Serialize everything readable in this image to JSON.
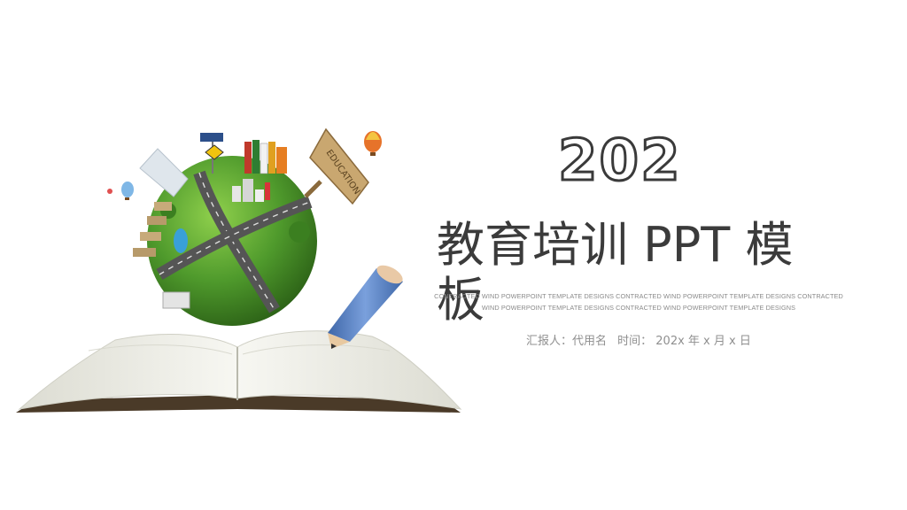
{
  "slide": {
    "year": "202",
    "title": "教育培训 PPT 模板",
    "tagline": "CONTRACTED WIND POWERPOINT TEMPLATE DESIGNS CONTRACTED WIND POWERPOINT TEMPLATE DESIGNS CONTRACTED WIND POWERPOINT TEMPLATE DESIGNS CONTRACTED WIND POWERPOINT TEMPLATE DESIGNS",
    "reporter": "汇报人：代用名",
    "date": "时间： 202x 年 x 月 x 日"
  },
  "illustration": {
    "sign_text": "EDUCATION",
    "colors": {
      "globe": "#4f9a2c",
      "road": "#5b5b5b",
      "pencil": "#5b83c4",
      "book_pages": "#f1f1ec"
    }
  }
}
